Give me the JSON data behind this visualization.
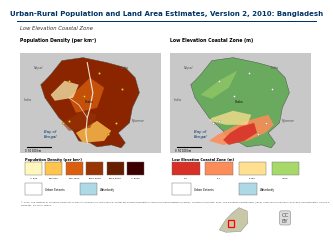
{
  "title": "Urban-Rural Population and Land Area Estimates, Version 2, 2010: Bangladesh",
  "subtitle": "Low Elevation Coastal Zone",
  "left_map_label": "Population Density (per km²)",
  "right_map_label": "Low Elevation Coastal Zone (m)",
  "left_legend_title": "Population Density (per km²)",
  "left_legend_items": [
    {
      "label": "< 200",
      "color": "#FFF7BC"
    },
    {
      "label": "200-500",
      "color": "#FEC44F"
    },
    {
      "label": "500-1000",
      "color": "#D95F0E"
    },
    {
      "label": "1000-2000",
      "color": "#993404"
    },
    {
      "label": "2000-5000",
      "color": "#662000"
    },
    {
      "label": "> 5000",
      "color": "#3D0000"
    }
  ],
  "left_legend_extra": [
    {
      "label": "Urban Extents",
      "color": "#FFFFFF"
    },
    {
      "label": "Waterbody",
      "color": "#ADD8E6"
    }
  ],
  "right_legend_title": "Low Elevation Coastal Zone (m)",
  "right_legend_items": [
    {
      "label": "0-5",
      "color": "#D73027"
    },
    {
      "label": "5-7",
      "color": "#FC8D59"
    },
    {
      "label": "5-750",
      "color": "#FEE090"
    },
    {
      "label": ">750",
      "color": "#A6D96A"
    }
  ],
  "right_legend_extra": [
    {
      "label": "Urban Extents",
      "color": "#FFFFFF"
    },
    {
      "label": "Waterbody",
      "color": "#ADD8E6"
    }
  ],
  "bg_color": "#FFFFFF",
  "title_color": "#003366",
  "map_bg": "#ADD8E6",
  "border_color": "#003366",
  "surrounding_color": "#C8C8C8"
}
